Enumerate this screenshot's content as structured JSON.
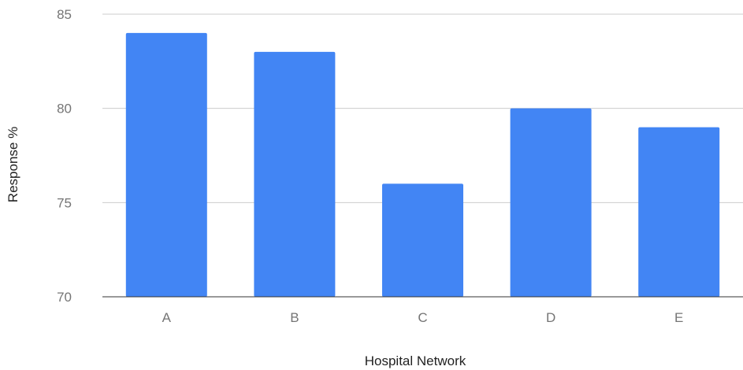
{
  "chart_data": {
    "type": "bar",
    "title": "",
    "xlabel": "Hospital Network",
    "ylabel": "Response %",
    "categories": [
      "A",
      "B",
      "C",
      "D",
      "E"
    ],
    "series": [
      {
        "values": [
          84,
          83,
          76,
          80,
          79
        ]
      }
    ],
    "ylim": [
      70,
      85
    ],
    "yticks": [
      70,
      75,
      80,
      85
    ],
    "ytick_labels": [
      "70",
      "75",
      "80",
      "85"
    ],
    "grid": true,
    "legend": "none",
    "colors": {
      "bar": "#4285f4",
      "grid": "#cccccc",
      "baseline": "#333333",
      "tick_text": "#757575",
      "axis_title_text": "#222222"
    }
  }
}
